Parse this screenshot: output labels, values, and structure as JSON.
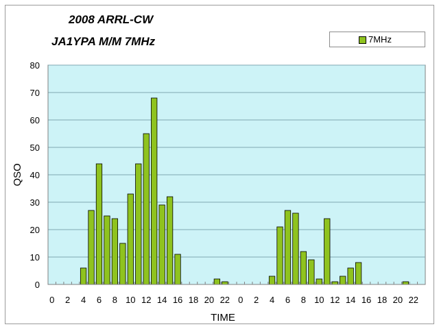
{
  "chart_data": {
    "type": "bar",
    "title": "2008 ARRL-CW",
    "subtitle": "JA1YPA M/M  7MHz",
    "xlabel": "TIME",
    "ylabel": "QSO",
    "ylim": [
      0,
      80
    ],
    "yticks": [
      0,
      10,
      20,
      30,
      40,
      50,
      60,
      70,
      80
    ],
    "grid": true,
    "legend_position": "top-right",
    "categories": [
      "0",
      "1",
      "2",
      "3",
      "4",
      "5",
      "6",
      "7",
      "8",
      "9",
      "10",
      "11",
      "12",
      "13",
      "14",
      "15",
      "16",
      "17",
      "18",
      "19",
      "20",
      "21",
      "22",
      "23",
      "0",
      "1",
      "2",
      "3",
      "4",
      "5",
      "6",
      "7",
      "8",
      "9",
      "10",
      "11",
      "12",
      "13",
      "14",
      "15",
      "16",
      "17",
      "18",
      "19",
      "20",
      "21",
      "22",
      "23"
    ],
    "tick_labels": [
      "0",
      "",
      "2",
      "",
      "4",
      "",
      "6",
      "",
      "8",
      "",
      "10",
      "",
      "12",
      "",
      "14",
      "",
      "16",
      "",
      "18",
      "",
      "20",
      "",
      "22",
      "",
      "0",
      "",
      "2",
      "",
      "4",
      "",
      "6",
      "",
      "8",
      "",
      "10",
      "",
      "12",
      "",
      "14",
      "",
      "16",
      "",
      "18",
      "",
      "20",
      "",
      "22",
      ""
    ],
    "series": [
      {
        "name": "7MHz",
        "color": "#8fc31f",
        "values": [
          0,
          0,
          0,
          0,
          6,
          27,
          44,
          25,
          24,
          15,
          33,
          44,
          55,
          68,
          29,
          32,
          11,
          0,
          0,
          0,
          0,
          2,
          1,
          0,
          0,
          0,
          0,
          0,
          3,
          21,
          27,
          26,
          12,
          9,
          2,
          24,
          1,
          3,
          6,
          8,
          0,
          0,
          0,
          0,
          0,
          1,
          0,
          0
        ]
      }
    ]
  }
}
